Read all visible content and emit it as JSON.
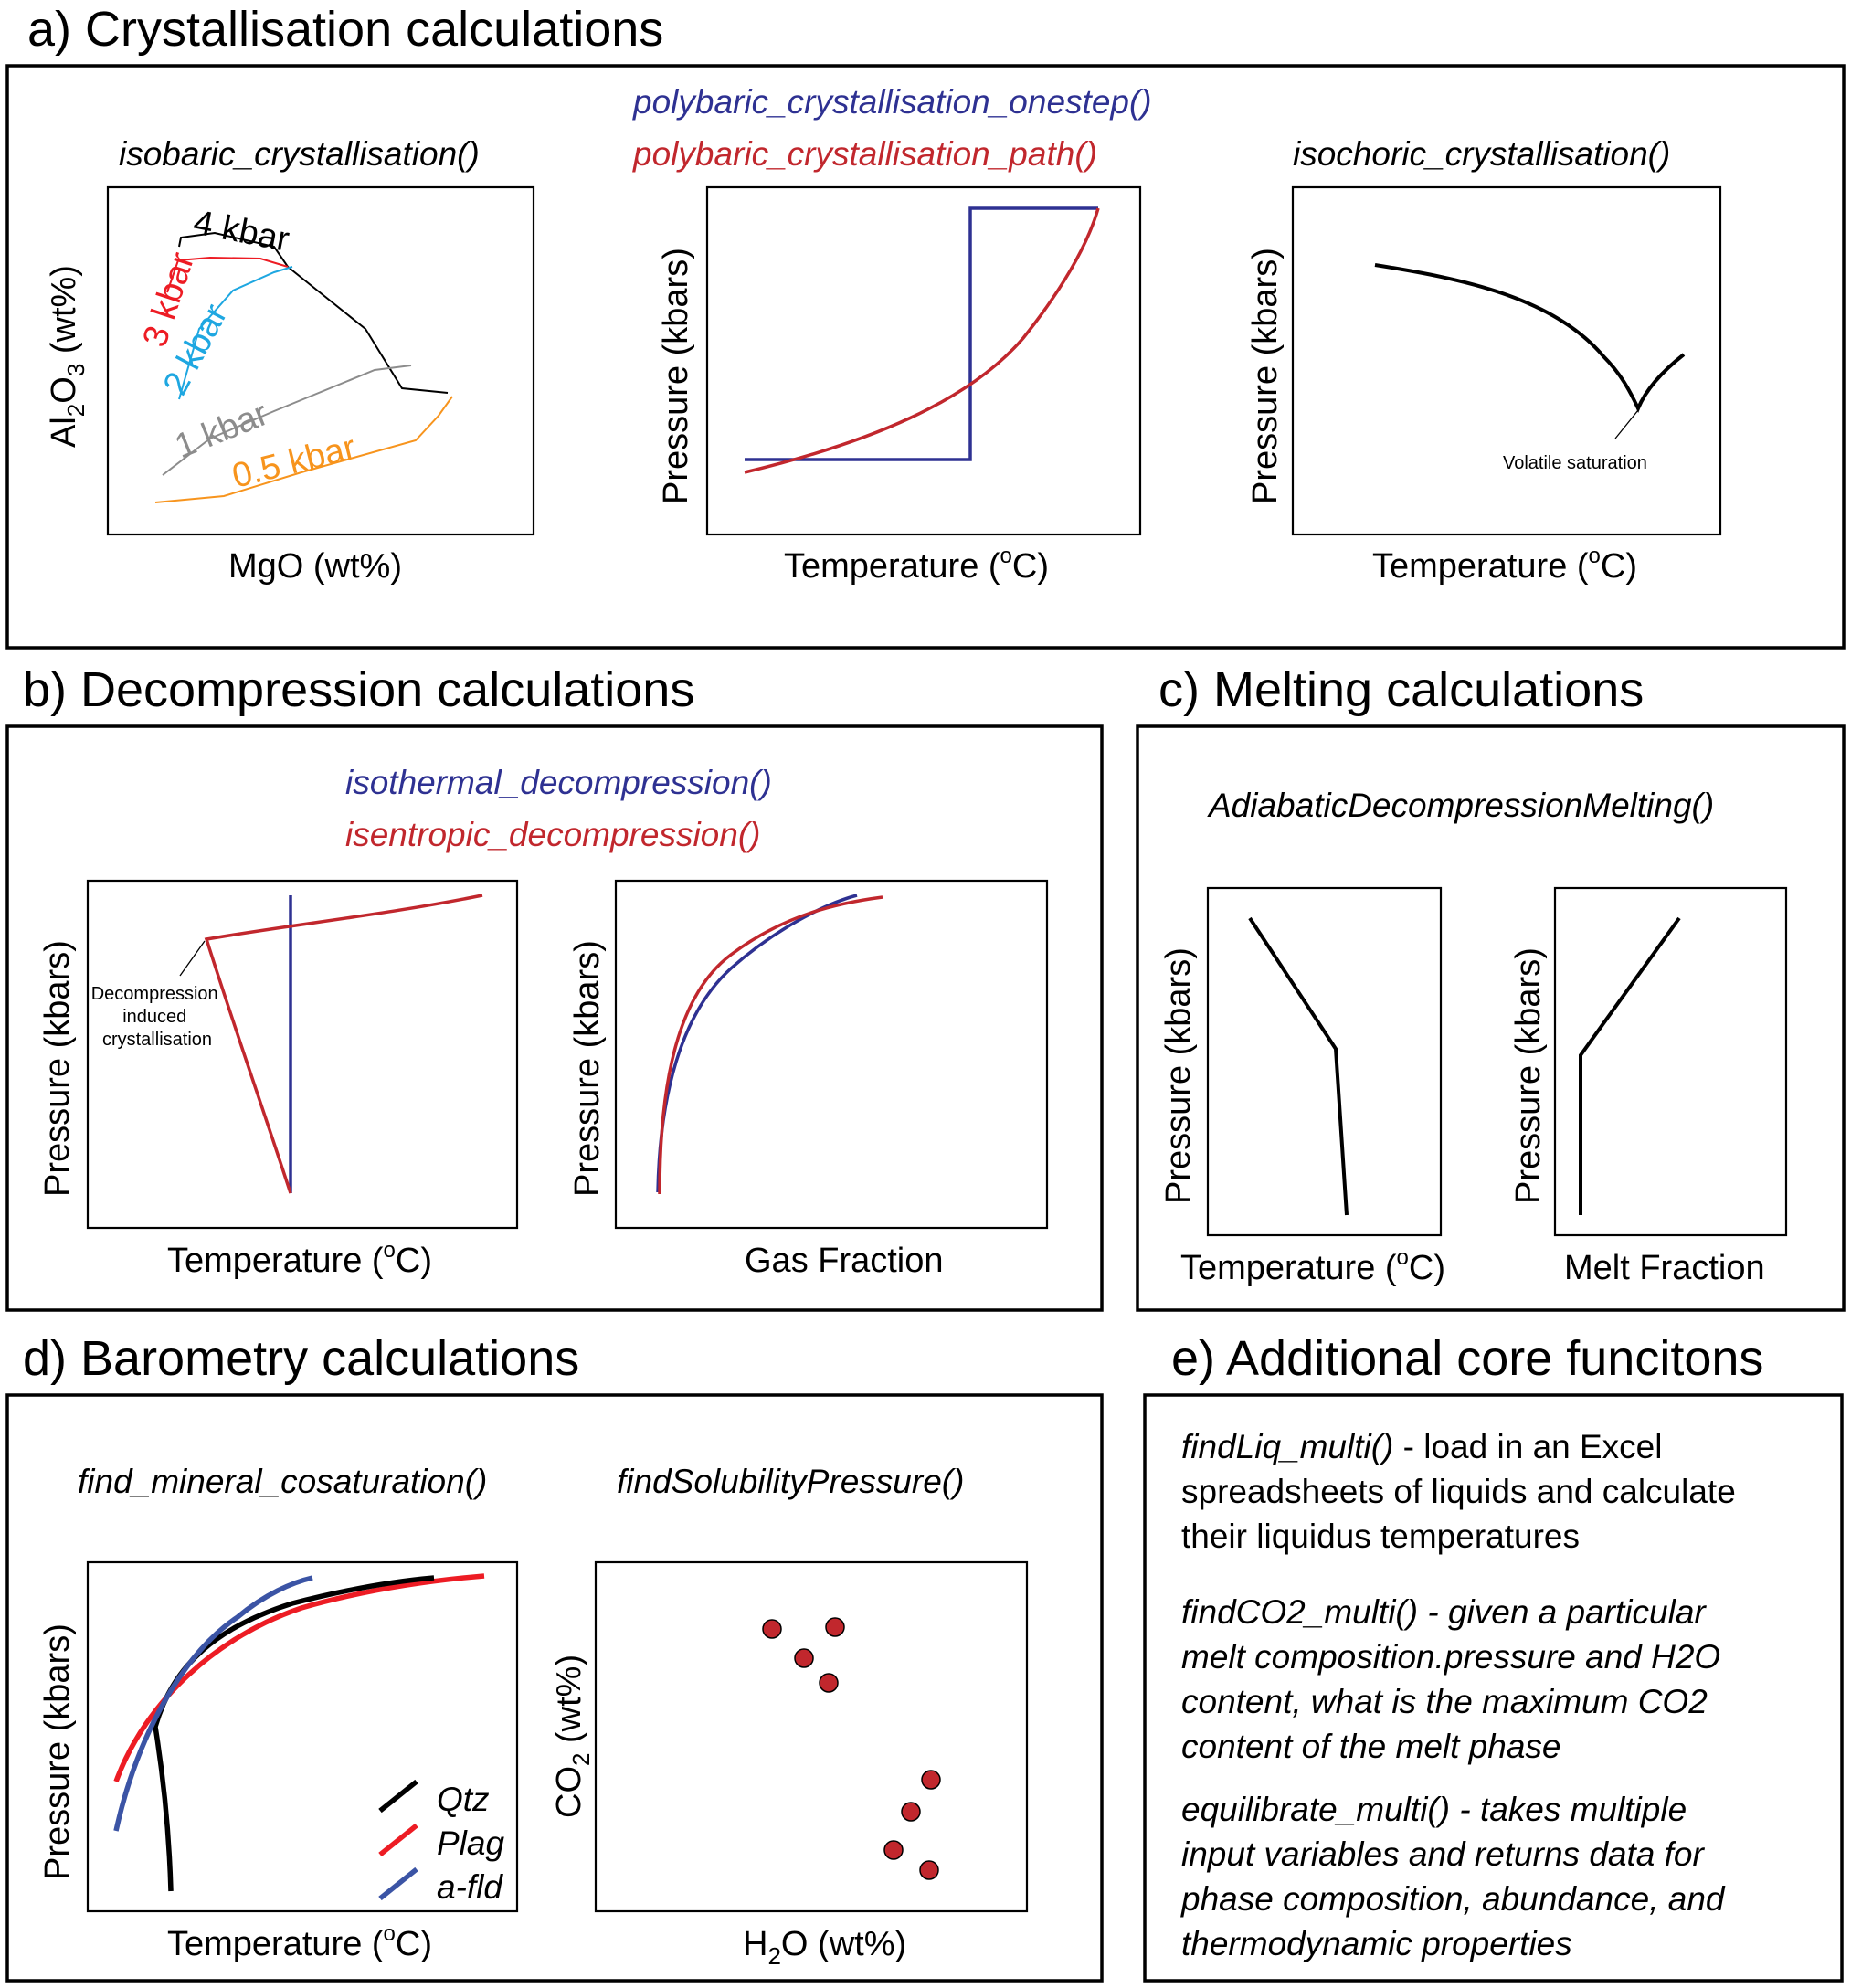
{
  "colors": {
    "blue": "#2e3192",
    "red": "#c1272d",
    "black": "#000000",
    "cyan": "#1ea7e1",
    "grey": "#8c8c8c",
    "orange": "#f7941d",
    "legend_red": "#ed1c24",
    "legend_blue": "#3b54a5",
    "marker": "#c1272d"
  },
  "a": {
    "title": "a)  Crystallisation calculations",
    "plot1": {
      "fn": "isobaric_crystallisation()",
      "xlabel": "MgO (wt%)",
      "ylabel_main": "Al",
      "ylabel_sub1": "2",
      "ylabel_mid": "O",
      "ylabel_sub2": "3",
      "ylabel_end": " (wt%)",
      "curve_labels": [
        "4 kbar",
        "3 kbar",
        "2 kbar",
        "1 kbar",
        "0.5 kbar"
      ]
    },
    "plot2": {
      "fn_blue": "polybaric_crystallisation_onestep()",
      "fn_red": "polybaric_crystallisation_path()",
      "xlabel_main": "Temperature (",
      "xlabel_sup": "o",
      "xlabel_end": "C)",
      "ylabel": "Pressure (kbars)"
    },
    "plot3": {
      "fn": "isochoric_crystallisation()",
      "xlabel_main": "Temperature (",
      "xlabel_sup": "o",
      "xlabel_end": "C)",
      "ylabel": "Pressure (kbars)",
      "annotation": "Volatile saturation"
    }
  },
  "b": {
    "title": "b) Decompression calculations",
    "fn_blue": "isothermal_decompression()",
    "fn_red": "isentropic_decompression()",
    "plot1": {
      "xlabel_main": "Temperature (",
      "xlabel_sup": "o",
      "xlabel_end": "C)",
      "ylabel": "Pressure (kbars)",
      "annotation": [
        "Decompression",
        "induced",
        "crystallisation"
      ]
    },
    "plot2": {
      "xlabel": "Gas Fraction",
      "ylabel": "Pressure (kbars)"
    }
  },
  "c": {
    "title": "c) Melting calculations",
    "fn": "AdiabaticDecompressionMelting()",
    "plot1": {
      "xlabel_main": "Temperature (",
      "xlabel_sup": "o",
      "xlabel_end": "C)",
      "ylabel": "Pressure (kbars)"
    },
    "plot2": {
      "xlabel": "Melt Fraction",
      "ylabel": "Pressure (kbars)"
    }
  },
  "d": {
    "title": "d) Barometry calculations",
    "plot1": {
      "fn": "find_mineral_cosaturation()",
      "xlabel_main": "Temperature (",
      "xlabel_sup": "o",
      "xlabel_end": "C)",
      "ylabel": "Pressure (kbars)",
      "legend": [
        "Qtz",
        "Plag",
        "a-fld"
      ]
    },
    "plot2": {
      "fn": "findSolubilityPressure()",
      "xlabel_main": "H",
      "xlabel_sub": "2",
      "xlabel_end": "O (wt%)",
      "ylabel_main": "CO",
      "ylabel_sub": "2",
      "ylabel_end": " (wt%)"
    }
  },
  "e": {
    "title": "e) Additional core funcitons",
    "lines": [
      {
        "text": "findLiq_multi()",
        "italic": true
      },
      {
        "text": " - load in an Excel",
        "italic": false
      }
    ],
    "para1": {
      "fn": "findLiq_multi()",
      "rest": [
        " - load in an Excel",
        "spreadsheets of liquids and calculate",
        "their liquidus temperatures"
      ]
    },
    "para2": [
      "findCO2_multi() - given a particular",
      "melt composition.pressure and H2O",
      "content, what is the maximum CO2",
      "content of the melt phase"
    ],
    "para3": [
      "equilibrate_multi() -  takes multiple",
      "input variables and returns data for",
      "phase composition, abundance, and",
      "thermodynamic properties"
    ]
  }
}
